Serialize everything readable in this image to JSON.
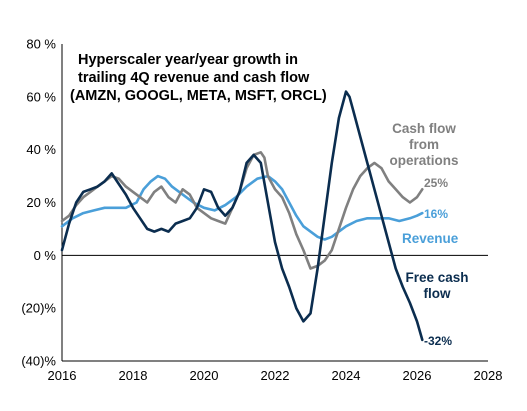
{
  "chart_data": {
    "type": "line",
    "title_lines": [
      "Hyperscaler year/year growth in",
      "trailing 4Q revenue and cash flow",
      "(AMZN, GOOGL, META, MSFT, ORCL)"
    ],
    "xlim": [
      2016,
      2028
    ],
    "ylim": [
      -40,
      80
    ],
    "x_ticks": [
      2016,
      2018,
      2020,
      2022,
      2024,
      2026,
      2028
    ],
    "x_tick_labels": [
      "2016",
      "2018",
      "2020",
      "2022",
      "2024",
      "2026",
      "2028"
    ],
    "y_ticks": [
      -40,
      -20,
      0,
      20,
      40,
      60,
      80
    ],
    "y_tick_labels": [
      "(40)%",
      "(20)%",
      "0 %",
      "20 %",
      "40 %",
      "60 %",
      "80 %"
    ],
    "grid": false,
    "series": [
      {
        "name": "Revenue",
        "color": "#4A9FD9",
        "label_lines": [
          "Revenue"
        ],
        "end_label": "16%",
        "x": [
          2016.0,
          2016.3,
          2016.6,
          2016.9,
          2017.2,
          2017.5,
          2017.8,
          2018.1,
          2018.3,
          2018.5,
          2018.7,
          2018.9,
          2019.1,
          2019.4,
          2019.7,
          2020.0,
          2020.3,
          2020.6,
          2020.9,
          2021.2,
          2021.5,
          2021.8,
          2022.0,
          2022.2,
          2022.4,
          2022.6,
          2022.8,
          2023.0,
          2023.2,
          2023.4,
          2023.6,
          2023.8,
          2024.0,
          2024.3,
          2024.6,
          2024.9,
          2025.2,
          2025.5,
          2025.8,
          2026.0,
          2026.15
        ],
        "values": [
          11,
          14,
          16,
          17,
          18,
          18,
          18,
          20,
          25,
          28,
          30,
          29,
          26,
          23,
          20,
          18,
          17,
          19,
          22,
          26,
          29,
          30,
          28,
          25,
          20,
          15,
          11,
          9,
          7,
          6,
          7,
          9,
          11,
          13,
          14,
          14,
          14,
          13,
          14,
          15,
          16
        ]
      },
      {
        "name": "Cash flow from operations",
        "color": "#808080",
        "label_lines": [
          "Cash flow",
          "from",
          "operations"
        ],
        "end_label": "25%",
        "x": [
          2016.0,
          2016.2,
          2016.4,
          2016.6,
          2016.8,
          2017.0,
          2017.2,
          2017.4,
          2017.6,
          2017.8,
          2018.0,
          2018.2,
          2018.4,
          2018.6,
          2018.8,
          2019.0,
          2019.2,
          2019.4,
          2019.6,
          2019.8,
          2020.0,
          2020.2,
          2020.4,
          2020.6,
          2020.8,
          2021.0,
          2021.2,
          2021.4,
          2021.6,
          2021.7,
          2021.8,
          2022.0,
          2022.2,
          2022.4,
          2022.6,
          2022.8,
          2023.0,
          2023.2,
          2023.4,
          2023.6,
          2023.8,
          2024.0,
          2024.2,
          2024.4,
          2024.6,
          2024.8,
          2025.0,
          2025.2,
          2025.4,
          2025.6,
          2025.8,
          2026.0,
          2026.15
        ],
        "values": [
          13,
          15,
          19,
          22,
          24,
          26,
          28,
          30,
          29,
          26,
          24,
          22,
          20,
          24,
          26,
          22,
          20,
          25,
          23,
          18,
          16,
          14,
          13,
          12,
          18,
          24,
          33,
          38,
          39,
          37,
          30,
          25,
          22,
          16,
          8,
          2,
          -5,
          -4,
          -2,
          2,
          10,
          18,
          25,
          30,
          33,
          35,
          33,
          28,
          25,
          22,
          20,
          22,
          25
        ]
      },
      {
        "name": "Free cash flow",
        "color": "#0B2D4F",
        "label_lines": [
          "Free cash",
          "flow"
        ],
        "end_label": "-32%",
        "x": [
          2016.0,
          2016.2,
          2016.4,
          2016.6,
          2016.8,
          2017.0,
          2017.2,
          2017.4,
          2017.6,
          2017.8,
          2018.0,
          2018.2,
          2018.4,
          2018.6,
          2018.8,
          2019.0,
          2019.2,
          2019.4,
          2019.6,
          2019.8,
          2020.0,
          2020.2,
          2020.4,
          2020.6,
          2020.8,
          2021.0,
          2021.2,
          2021.4,
          2021.6,
          2021.8,
          2022.0,
          2022.2,
          2022.4,
          2022.6,
          2022.8,
          2023.0,
          2023.2,
          2023.4,
          2023.6,
          2023.8,
          2024.0,
          2024.1,
          2024.2,
          2024.4,
          2024.6,
          2024.8,
          2025.0,
          2025.2,
          2025.4,
          2025.6,
          2025.8,
          2026.0,
          2026.15
        ],
        "values": [
          2,
          12,
          20,
          24,
          25,
          26,
          28,
          31,
          27,
          23,
          18,
          14,
          10,
          9,
          10,
          9,
          12,
          13,
          14,
          18,
          25,
          24,
          18,
          15,
          18,
          24,
          35,
          38,
          35,
          20,
          5,
          -5,
          -12,
          -20,
          -25,
          -22,
          -5,
          15,
          35,
          52,
          62,
          60,
          55,
          45,
          35,
          25,
          15,
          5,
          -5,
          -12,
          -18,
          -25,
          -32
        ]
      }
    ]
  }
}
